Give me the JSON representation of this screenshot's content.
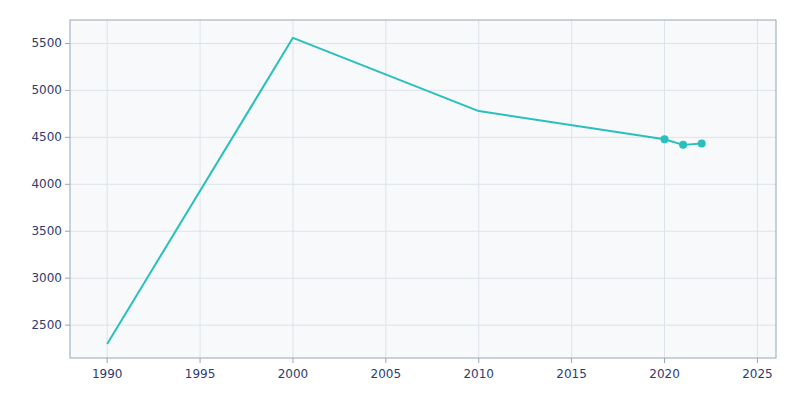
{
  "chart_data": {
    "type": "line",
    "x": [
      1990,
      2000,
      2010,
      2020,
      2021,
      2022
    ],
    "series": [
      {
        "type": "line",
        "color": "#29BFBF",
        "values": [
          2300,
          5560,
          4780,
          4480,
          4420,
          4435
        ]
      },
      {
        "type": "scatter",
        "marker": "circle",
        "color": "#29BFBF",
        "values": [
          null,
          null,
          null,
          4480,
          4420,
          4435
        ]
      }
    ],
    "xlim": [
      1988,
      2026
    ],
    "ylim": [
      2150,
      5750
    ],
    "xticks": [
      1990,
      1995,
      2000,
      2005,
      2010,
      2015,
      2020,
      2025
    ],
    "yticks": [
      2500,
      3000,
      3500,
      4000,
      4500,
      5000,
      5500
    ],
    "grid": true
  }
}
